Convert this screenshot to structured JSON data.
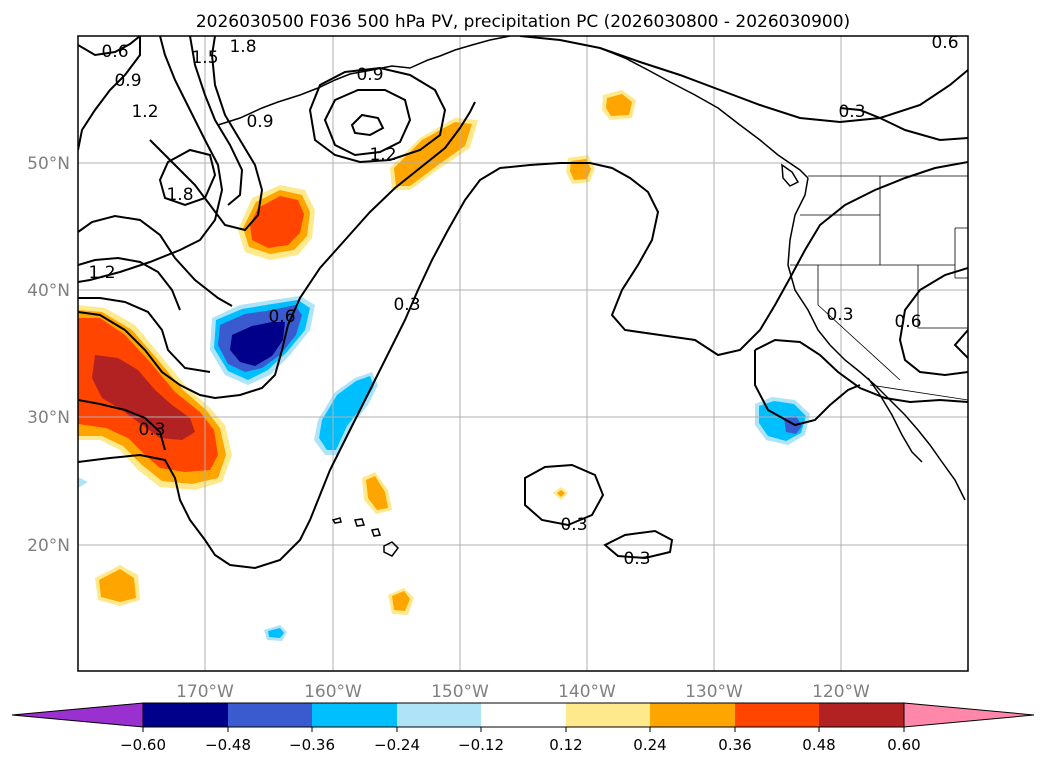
{
  "title": "2026030500 F036 500 hPa PV, precipitation PC (2026030800 - 2026030900)",
  "map": {
    "lat_labels": [
      "50°N",
      "40°N",
      "30°N",
      "20°N"
    ],
    "lon_labels": [
      "170°W",
      "160°W",
      "150°W",
      "140°W",
      "130°W",
      "120°W"
    ],
    "contour_labels": [
      "0.6",
      "0.9",
      "1.5",
      "1.8",
      "1.2",
      "0.9",
      "1.8",
      "0.9",
      "1.2",
      "1.2",
      "0.6",
      "0.3",
      "0.3",
      "0.3",
      "0.3",
      "0.3",
      "0.3",
      "0.6",
      "0.6"
    ]
  },
  "colorbar": {
    "colors": [
      "#9b30d0",
      "#00008b",
      "#3a5bd0",
      "#00bfff",
      "#aee3f8",
      "#ffffff",
      "#fee98c",
      "#ffa500",
      "#ff4500",
      "#b22222",
      "#ff88aa"
    ],
    "tick_labels": [
      "−0.60",
      "−0.48",
      "−0.36",
      "−0.24",
      "−0.12",
      "0.12",
      "0.24",
      "0.36",
      "0.48",
      "0.60"
    ]
  }
}
